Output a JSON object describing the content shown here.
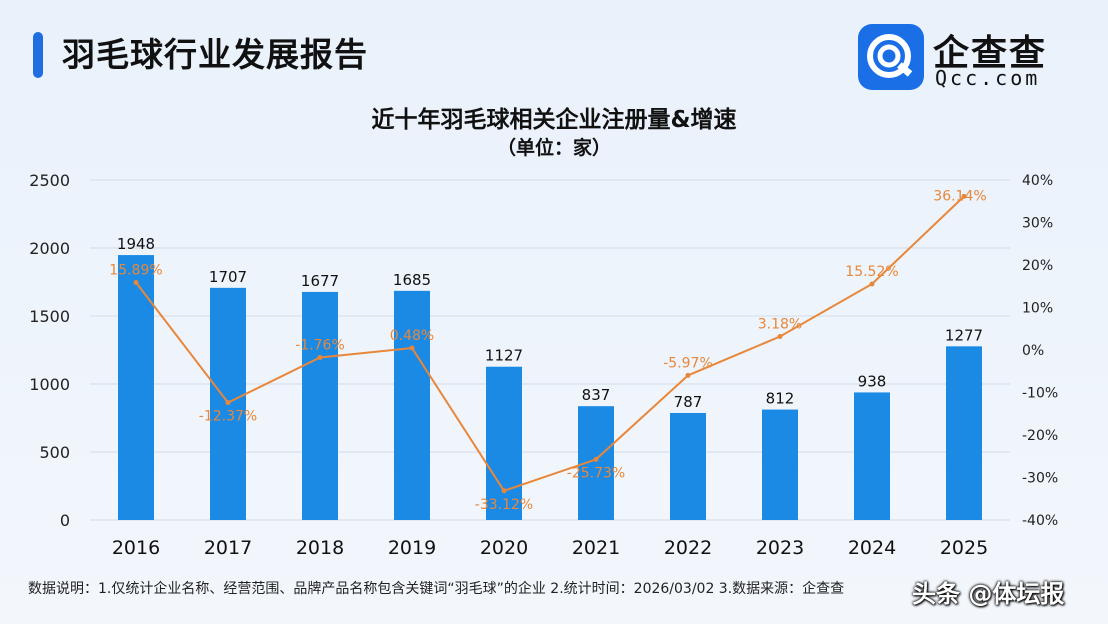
{
  "header": {
    "title": "羽毛球行业发展报告",
    "logo_name": "企查查",
    "logo_domain": "Qcc.com"
  },
  "chart_data": {
    "type": "bar",
    "title": "近十年羽毛球相关企业注册量&增速",
    "subtitle": "（单位：家）",
    "categories": [
      "2016",
      "2017",
      "2018",
      "2019",
      "2020",
      "2021",
      "2022",
      "2023",
      "2024",
      "2025"
    ],
    "series": [
      {
        "type": "bar",
        "axis": "left",
        "values": [
          1948,
          1707,
          1677,
          1685,
          1127,
          837,
          787,
          812,
          938,
          1277
        ],
        "labels": [
          "1948",
          "1707",
          "1677",
          "1685",
          "1127",
          "837",
          "787",
          "812",
          "938",
          "1277"
        ],
        "color": "#1a8ae5"
      },
      {
        "type": "line",
        "axis": "right",
        "values": [
          15.89,
          -12.37,
          -1.76,
          0.48,
          -33.12,
          -25.73,
          -5.97,
          3.18,
          15.52,
          36.14
        ],
        "labels": [
          "15.89%",
          "-12.37%",
          "-1.76%",
          "0.48%",
          "-33.12%",
          "-25.73%",
          "-5.97%",
          "3.18%",
          "15.52%",
          "36.14%"
        ],
        "color": "#e8873a"
      }
    ],
    "y_left": {
      "ylim": [
        0,
        2500
      ],
      "ticks": [
        "0",
        "500",
        "1000",
        "1500",
        "2000",
        "2500"
      ]
    },
    "y_right": {
      "ylim": [
        -40,
        40
      ],
      "ticks": [
        "-40%",
        "-30%",
        "-20%",
        "-10%",
        "0%",
        "10%",
        "20%",
        "30%",
        "40%"
      ]
    },
    "grid": true,
    "legend": "none"
  },
  "footer": {
    "note": "数据说明：1.仅统计企业名称、经营范围、品牌产品名称包含关键词“羽毛球”的企业   2.统计时间：2026/03/02   3.数据来源：企查查",
    "watermark": "头条 @体坛报"
  },
  "colors": {
    "accent": "#1f6fe0",
    "bar": "#1a8ae5",
    "line": "#e8873a",
    "logo": "#1a6ee6"
  }
}
